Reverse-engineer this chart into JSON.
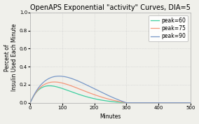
{
  "title": "OpenAPS Exponential \"activity\" Curves, DIA=5",
  "xlabel": "Minutes",
  "ylabel": "Percent of\nInsulin Used Each Minute",
  "xlim": [
    0,
    500
  ],
  "ylim": [
    0,
    1.0
  ],
  "xticks": [
    0,
    100,
    200,
    300,
    400,
    500
  ],
  "yticks": [
    0.0,
    0.2,
    0.4,
    0.6,
    0.8,
    1.0
  ],
  "DIA_minutes": 300,
  "peaks": [
    60,
    75,
    90
  ],
  "colors": [
    "#3ecfa0",
    "#f4977a",
    "#7898c8"
  ],
  "legend_labels": [
    "peak=60",
    "peak=75",
    "peak=90"
  ],
  "grid_color": "#c8c8c8",
  "grid_style": "dotted",
  "bg_color": "#f0f0eb",
  "title_fontsize": 7,
  "label_fontsize": 5.5,
  "tick_fontsize": 5,
  "legend_fontsize": 5.5
}
